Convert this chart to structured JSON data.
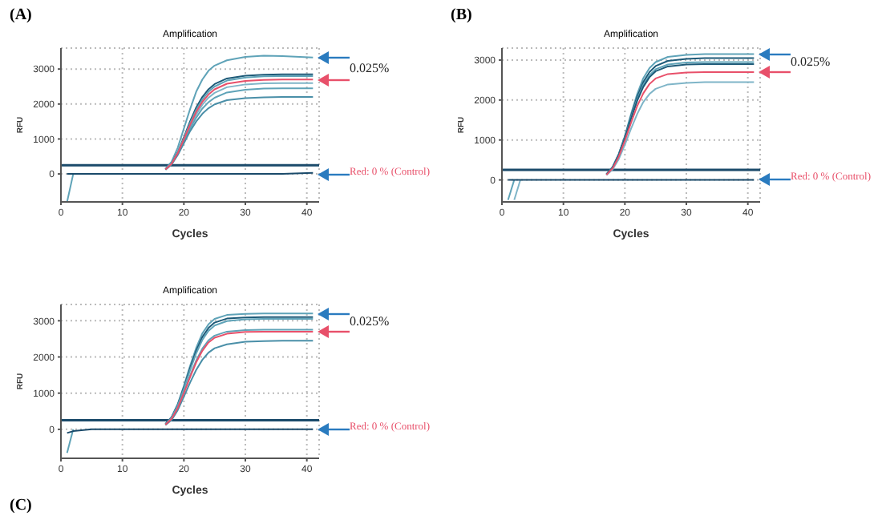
{
  "chart_data": [
    {
      "type": "line",
      "title": "Amplification",
      "xlabel": "Cycles",
      "ylabel": "RFU",
      "x": [
        1,
        2,
        5,
        10,
        13,
        15,
        16,
        17,
        18,
        19,
        20,
        21,
        22,
        23,
        24,
        25,
        27,
        30,
        33,
        36,
        41
      ],
      "xlim": [
        0,
        42
      ],
      "xticks": [
        0,
        10,
        20,
        30,
        40
      ],
      "ylim": [
        -800,
        3600
      ],
      "yticks": [
        0,
        1000,
        2000,
        3000
      ],
      "grid": true,
      "marker": "none",
      "ref_lines": [
        {
          "axis": "y",
          "value": 250,
          "color": "#1a4a6a"
        }
      ],
      "annotations": [
        "(A)",
        "0.025%"
      ],
      "series": [
        {
          "color": "#5fa3b8",
          "values": [
            null,
            null,
            null,
            null,
            null,
            null,
            null,
            150,
            350,
            750,
            1300,
            1850,
            2350,
            2700,
            2950,
            3100,
            3250,
            3350,
            3380,
            3370,
            3330
          ]
        },
        {
          "color": "#1d5a78",
          "values": [
            null,
            null,
            null,
            null,
            null,
            null,
            null,
            130,
            300,
            620,
            1050,
            1500,
            1900,
            2200,
            2420,
            2570,
            2730,
            2810,
            2840,
            2850,
            2850
          ]
        },
        {
          "color": "#5fa3b8",
          "values": [
            null,
            null,
            null,
            null,
            null,
            null,
            null,
            130,
            300,
            610,
            1020,
            1450,
            1830,
            2130,
            2350,
            2500,
            2670,
            2760,
            2790,
            2800,
            2800
          ]
        },
        {
          "color": "#7fb5c8",
          "values": [
            null,
            null,
            null,
            null,
            null,
            null,
            null,
            130,
            290,
            580,
            960,
            1350,
            1700,
            1980,
            2180,
            2320,
            2480,
            2560,
            2590,
            2600,
            2600
          ]
        },
        {
          "color": "#5fa3b8",
          "values": [
            null,
            null,
            null,
            null,
            null,
            null,
            null,
            120,
            280,
            560,
            920,
            1290,
            1610,
            1870,
            2050,
            2180,
            2330,
            2410,
            2440,
            2450,
            2450
          ]
        },
        {
          "color": "#4a8fa8",
          "values": [
            null,
            null,
            null,
            null,
            null,
            null,
            null,
            120,
            270,
            540,
            880,
            1220,
            1500,
            1720,
            1880,
            1990,
            2110,
            2170,
            2190,
            2200,
            2200
          ]
        },
        {
          "name": "Red: 0 % (Control)",
          "color": "#e8506a",
          "values": [
            null,
            null,
            null,
            null,
            null,
            null,
            null,
            130,
            290,
            590,
            990,
            1400,
            1770,
            2060,
            2270,
            2420,
            2580,
            2660,
            2690,
            2700,
            2700
          ]
        },
        {
          "color": "#5fa3b8",
          "values": [
            -800,
            0,
            null,
            null,
            null,
            null,
            null,
            null,
            null,
            null,
            null,
            null,
            null,
            null,
            null,
            null,
            null,
            null,
            null,
            null,
            null
          ]
        },
        {
          "color": "#1a4a6a",
          "values": [
            0,
            0,
            0,
            0,
            0,
            0,
            0,
            0,
            0,
            0,
            0,
            0,
            0,
            0,
            0,
            0,
            0,
            0,
            0,
            0,
            30
          ]
        }
      ]
    },
    {
      "type": "line",
      "title": "Amplification",
      "xlabel": "Cycles",
      "ylabel": "RFU",
      "x": [
        1,
        2,
        3,
        5,
        10,
        13,
        15,
        16,
        17,
        18,
        19,
        20,
        21,
        22,
        23,
        24,
        25,
        27,
        30,
        33,
        36,
        41
      ],
      "xlim": [
        0,
        42
      ],
      "xticks": [
        0,
        10,
        20,
        30,
        40
      ],
      "ylim": [
        -550,
        3300
      ],
      "yticks": [
        0,
        1000,
        2000,
        3000
      ],
      "grid": true,
      "marker": "none",
      "ref_lines": [
        {
          "axis": "y",
          "value": 250,
          "color": "#1a4a6a"
        }
      ],
      "annotations": [
        "(B)",
        "0.025%"
      ],
      "series": [
        {
          "color": "#5fa3b8",
          "values": [
            null,
            null,
            null,
            null,
            null,
            null,
            null,
            null,
            140,
            320,
            650,
            1100,
            1650,
            2150,
            2550,
            2800,
            2950,
            3080,
            3130,
            3150,
            3150,
            3150
          ]
        },
        {
          "color": "#1d5a78",
          "values": [
            null,
            null,
            null,
            null,
            null,
            null,
            null,
            null,
            140,
            320,
            640,
            1080,
            1600,
            2080,
            2450,
            2700,
            2850,
            2980,
            3030,
            3050,
            3050,
            3050
          ]
        },
        {
          "color": "#5fa3b8",
          "values": [
            null,
            null,
            null,
            null,
            null,
            null,
            null,
            null,
            140,
            320,
            630,
            1060,
            1560,
            2020,
            2380,
            2620,
            2770,
            2890,
            2940,
            2950,
            2950,
            2950
          ]
        },
        {
          "color": "#1d5a78",
          "values": [
            null,
            null,
            null,
            null,
            null,
            null,
            null,
            null,
            140,
            310,
            620,
            1040,
            1530,
            1980,
            2330,
            2570,
            2720,
            2840,
            2890,
            2900,
            2900,
            2900
          ]
        },
        {
          "color": "#7fb5c8",
          "values": [
            null,
            null,
            null,
            null,
            null,
            null,
            null,
            null,
            120,
            260,
            520,
            880,
            1280,
            1650,
            1950,
            2150,
            2280,
            2390,
            2430,
            2450,
            2450,
            2450
          ]
        },
        {
          "name": "Red: 0 % (Control)",
          "color": "#e8506a",
          "values": [
            null,
            null,
            null,
            null,
            null,
            null,
            null,
            null,
            130,
            290,
            580,
            980,
            1430,
            1850,
            2170,
            2400,
            2540,
            2650,
            2690,
            2700,
            2700,
            2700
          ]
        },
        {
          "color": "#5fa3b8",
          "values": [
            -500,
            0,
            null,
            null,
            null,
            null,
            null,
            null,
            null,
            null,
            null,
            null,
            null,
            null,
            null,
            null,
            null,
            null,
            null,
            null,
            null,
            null
          ]
        },
        {
          "color": "#7fb5c8",
          "values": [
            null,
            -500,
            0,
            null,
            null,
            null,
            null,
            null,
            null,
            null,
            null,
            null,
            null,
            null,
            null,
            null,
            null,
            null,
            null,
            null,
            null,
            null
          ]
        },
        {
          "color": "#1a4a6a",
          "values": [
            0,
            0,
            0,
            0,
            0,
            0,
            0,
            0,
            0,
            0,
            0,
            0,
            0,
            0,
            0,
            0,
            0,
            0,
            0,
            0,
            0,
            0
          ]
        }
      ]
    },
    {
      "type": "line",
      "title": "Amplification",
      "xlabel": "Cycles",
      "ylabel": "RFU",
      "x": [
        1,
        2,
        5,
        10,
        13,
        15,
        16,
        17,
        18,
        19,
        20,
        21,
        22,
        23,
        24,
        25,
        27,
        30,
        33,
        36,
        41
      ],
      "xlim": [
        0,
        42
      ],
      "xticks": [
        0,
        10,
        20,
        30,
        40
      ],
      "ylim": [
        -800,
        3450
      ],
      "yticks": [
        0,
        1000,
        2000,
        3000
      ],
      "grid": true,
      "marker": "none",
      "ref_lines": [
        {
          "axis": "y",
          "value": 250,
          "color": "#1a4a6a"
        }
      ],
      "annotations": [
        "(C)",
        "0.025%"
      ],
      "series": [
        {
          "color": "#5fa3b8",
          "values": [
            null,
            null,
            null,
            null,
            null,
            null,
            null,
            150,
            340,
            700,
            1200,
            1750,
            2250,
            2650,
            2900,
            3050,
            3160,
            3190,
            3200,
            3200,
            3200
          ]
        },
        {
          "color": "#1d5a78",
          "values": [
            null,
            null,
            null,
            null,
            null,
            null,
            null,
            150,
            330,
            680,
            1160,
            1690,
            2170,
            2550,
            2800,
            2950,
            3060,
            3090,
            3100,
            3100,
            3100
          ]
        },
        {
          "color": "#5fa3b8",
          "values": [
            null,
            null,
            null,
            null,
            null,
            null,
            null,
            140,
            320,
            660,
            1120,
            1630,
            2100,
            2470,
            2720,
            2870,
            2990,
            3040,
            3050,
            3050,
            3050
          ]
        },
        {
          "color": "#5fa3b8",
          "values": [
            null,
            null,
            null,
            null,
            null,
            null,
            null,
            130,
            300,
            610,
            1030,
            1480,
            1900,
            2230,
            2460,
            2590,
            2700,
            2740,
            2750,
            2750,
            2750
          ]
        },
        {
          "color": "#4a8fa8",
          "values": [
            null,
            null,
            null,
            null,
            null,
            null,
            null,
            120,
            260,
            530,
            900,
            1290,
            1640,
            1920,
            2120,
            2240,
            2350,
            2420,
            2440,
            2450,
            2450
          ]
        },
        {
          "name": "Red: 0 % (Control)",
          "color": "#e8506a",
          "values": [
            null,
            null,
            null,
            null,
            null,
            null,
            null,
            130,
            290,
            590,
            1000,
            1440,
            1850,
            2170,
            2400,
            2530,
            2640,
            2690,
            2700,
            2700,
            2700
          ]
        },
        {
          "color": "#5fa3b8",
          "values": [
            -650,
            0,
            null,
            null,
            null,
            null,
            null,
            null,
            null,
            null,
            null,
            null,
            null,
            null,
            null,
            null,
            null,
            null,
            null,
            null,
            null
          ]
        },
        {
          "color": "#1a4a6a",
          "values": [
            -100,
            -50,
            0,
            0,
            0,
            0,
            0,
            0,
            0,
            0,
            0,
            0,
            0,
            0,
            0,
            0,
            0,
            0,
            0,
            0,
            0
          ]
        }
      ]
    }
  ]
}
